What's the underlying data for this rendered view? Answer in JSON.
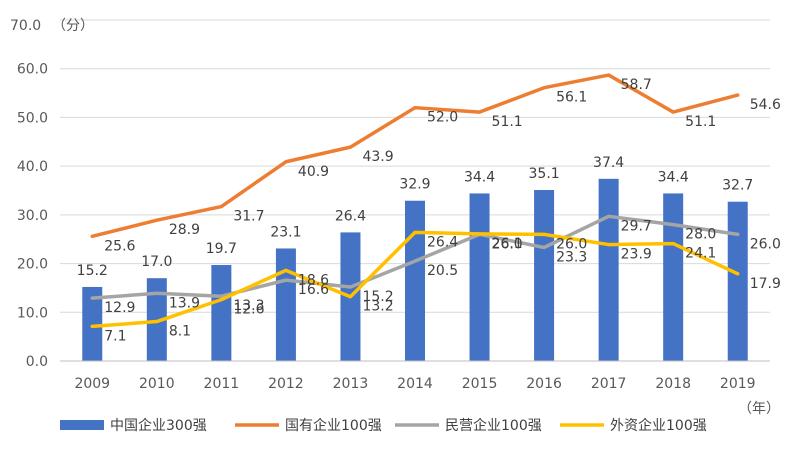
{
  "chart_data": {
    "type": "bar",
    "y_unit_label": "（分）",
    "x_unit_label": "（年）",
    "ylim": [
      0,
      70
    ],
    "yticks": [
      "0.0",
      "10.0",
      "20.0",
      "30.0",
      "40.0",
      "50.0",
      "60.0",
      "70.0"
    ],
    "categories": [
      "2009",
      "2010",
      "2011",
      "2012",
      "2013",
      "2014",
      "2015",
      "2016",
      "2017",
      "2018",
      "2019"
    ],
    "grid": true,
    "legend_position": "bottom",
    "colors": {
      "bar": "#4472C4",
      "state_owned": "#ED7D31",
      "private": "#A5A5A5",
      "foreign": "#FFC000"
    },
    "series": [
      {
        "name": "中国企业300强",
        "type": "bar",
        "values": [
          15.2,
          17.0,
          19.7,
          23.1,
          26.4,
          32.9,
          34.4,
          35.1,
          37.4,
          34.4,
          32.7
        ]
      },
      {
        "name": "国有企业100强",
        "type": "line",
        "values": [
          25.6,
          28.9,
          31.7,
          40.9,
          43.9,
          52.0,
          51.1,
          56.1,
          58.7,
          51.1,
          54.6
        ]
      },
      {
        "name": "民营企业100强",
        "type": "line",
        "values": [
          12.9,
          13.9,
          13.3,
          16.6,
          15.2,
          20.5,
          26.0,
          23.3,
          29.7,
          28.0,
          26.0
        ]
      },
      {
        "name": "外资企业100强",
        "type": "line",
        "values": [
          7.1,
          8.1,
          12.6,
          18.6,
          13.2,
          26.4,
          26.1,
          26.0,
          23.9,
          24.1,
          17.9
        ]
      }
    ]
  }
}
